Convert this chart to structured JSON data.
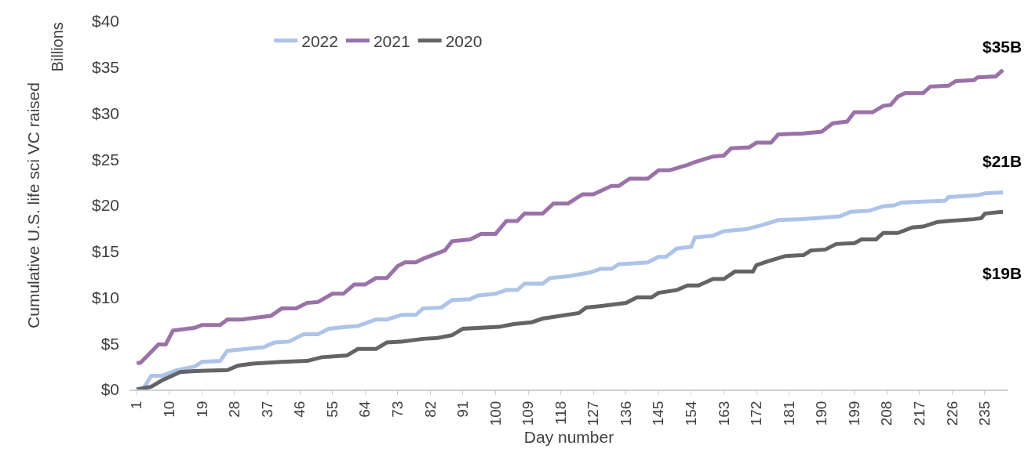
{
  "chart_data": {
    "type": "line",
    "xlabel": "Day number",
    "ylabel": "Cumulative U.S. life sci VC raised",
    "xlim": [
      -1,
      241.5
    ],
    "xticks": [
      1,
      10,
      19,
      28,
      37,
      46,
      55,
      64,
      73,
      82,
      91,
      100,
      109,
      118,
      127,
      136,
      145,
      154,
      163,
      172,
      181,
      190,
      199,
      208,
      217,
      226,
      235
    ],
    "ylim": [
      0,
      40
    ],
    "yticks": [
      {
        "value": 0,
        "label": "$0"
      },
      {
        "value": 5,
        "label": "$5"
      },
      {
        "value": 10,
        "label": "$10"
      },
      {
        "value": 15,
        "label": "$15"
      },
      {
        "value": 20,
        "label": "$20"
      },
      {
        "value": 25,
        "label": "$25"
      },
      {
        "value": 30,
        "label": "$30"
      },
      {
        "value": 35,
        "label": "$35"
      },
      {
        "value": 40,
        "label": "$40"
      }
    ],
    "grid": false,
    "legend": "top",
    "marker": "none",
    "line_style": "solid",
    "series": [
      {
        "name": "2022",
        "color": "#aec3e8",
        "x": [
          1,
          3,
          5,
          8,
          12,
          17,
          19,
          24,
          26,
          31,
          36,
          39,
          43,
          47,
          51,
          54,
          59,
          62,
          67,
          70,
          74,
          78,
          80,
          85,
          88,
          93,
          95,
          100,
          103,
          106,
          108,
          113,
          115,
          120,
          126,
          129,
          132,
          134,
          142,
          145,
          147,
          150,
          152,
          154,
          155,
          160,
          163,
          169,
          174,
          178,
          184,
          188,
          195,
          198,
          203,
          207,
          210,
          212,
          218,
          224,
          225,
          233,
          235,
          240
        ],
        "values": [
          0,
          0.2,
          1.5,
          1.5,
          2.1,
          2.5,
          3.0,
          3.1,
          4.2,
          4.4,
          4.6,
          5.1,
          5.2,
          6.0,
          6.0,
          6.6,
          6.8,
          6.9,
          7.6,
          7.6,
          8.1,
          8.1,
          8.8,
          8.9,
          9.7,
          9.8,
          10.2,
          10.4,
          10.8,
          10.8,
          11.5,
          11.5,
          12.1,
          12.3,
          12.7,
          13.1,
          13.1,
          13.6,
          13.8,
          14.4,
          14.4,
          15.3,
          15.4,
          15.5,
          16.5,
          16.7,
          17.2,
          17.4,
          17.9,
          18.4,
          18.5,
          18.6,
          18.8,
          19.3,
          19.4,
          19.9,
          20.0,
          20.3,
          20.4,
          20.5,
          20.9,
          21.1,
          21.3,
          21.4
        ]
      },
      {
        "name": "2021",
        "color": "#9a72a8",
        "x": [
          1,
          2,
          7,
          9,
          11,
          17,
          19,
          24,
          26,
          30,
          34,
          38,
          41,
          45,
          48,
          51,
          55,
          58,
          61,
          64,
          67,
          70,
          73,
          75,
          78,
          80,
          86,
          88,
          93,
          96,
          100,
          103,
          106,
          108,
          113,
          116,
          120,
          124,
          127,
          132,
          134,
          137,
          142,
          145,
          148,
          153,
          155,
          160,
          163,
          165,
          170,
          172,
          176,
          178,
          185,
          190,
          193,
          197,
          199,
          204,
          207,
          209,
          211,
          213,
          218,
          220,
          225,
          227,
          232,
          233,
          238,
          240
        ],
        "values": [
          2.9,
          2.9,
          4.9,
          4.9,
          6.4,
          6.7,
          7.0,
          7.0,
          7.6,
          7.6,
          7.8,
          8.0,
          8.8,
          8.8,
          9.4,
          9.5,
          10.4,
          10.4,
          11.4,
          11.4,
          12.1,
          12.1,
          13.4,
          13.8,
          13.8,
          14.2,
          15.1,
          16.1,
          16.3,
          16.9,
          16.9,
          18.3,
          18.3,
          19.1,
          19.1,
          20.2,
          20.2,
          21.2,
          21.2,
          22.1,
          22.1,
          22.9,
          22.9,
          23.8,
          23.8,
          24.4,
          24.7,
          25.3,
          25.4,
          26.2,
          26.3,
          26.8,
          26.8,
          27.7,
          27.8,
          28.0,
          28.9,
          29.1,
          30.1,
          30.1,
          30.8,
          30.9,
          31.8,
          32.2,
          32.2,
          32.9,
          33.0,
          33.5,
          33.6,
          33.9,
          34.0,
          34.7
        ]
      },
      {
        "name": "2020",
        "color": "#636466",
        "x": [
          1,
          5,
          8,
          13,
          17,
          26,
          29,
          33,
          41,
          48,
          52,
          59,
          62,
          67,
          70,
          74,
          80,
          84,
          88,
          91,
          101,
          105,
          110,
          113,
          123,
          125,
          130,
          136,
          139,
          143,
          145,
          150,
          153,
          156,
          160,
          163,
          166,
          171,
          172,
          175,
          180,
          185,
          187,
          191,
          194,
          199,
          201,
          205,
          207,
          211,
          215,
          218,
          222,
          225,
          232,
          234,
          235,
          240
        ],
        "values": [
          0,
          0.3,
          1.0,
          1.9,
          2.0,
          2.1,
          2.6,
          2.8,
          3.0,
          3.1,
          3.5,
          3.7,
          4.4,
          4.4,
          5.1,
          5.2,
          5.5,
          5.6,
          5.9,
          6.6,
          6.8,
          7.1,
          7.3,
          7.7,
          8.3,
          8.9,
          9.1,
          9.4,
          10.0,
          10.0,
          10.5,
          10.8,
          11.3,
          11.3,
          12.0,
          12.0,
          12.8,
          12.8,
          13.5,
          13.9,
          14.5,
          14.6,
          15.1,
          15.2,
          15.8,
          15.9,
          16.3,
          16.3,
          17.0,
          17.0,
          17.6,
          17.7,
          18.2,
          18.3,
          18.5,
          18.6,
          19.1,
          19.3
        ]
      }
    ],
    "annotations": [
      "$35B",
      "$21B",
      "$19B",
      "Billions"
    ]
  }
}
